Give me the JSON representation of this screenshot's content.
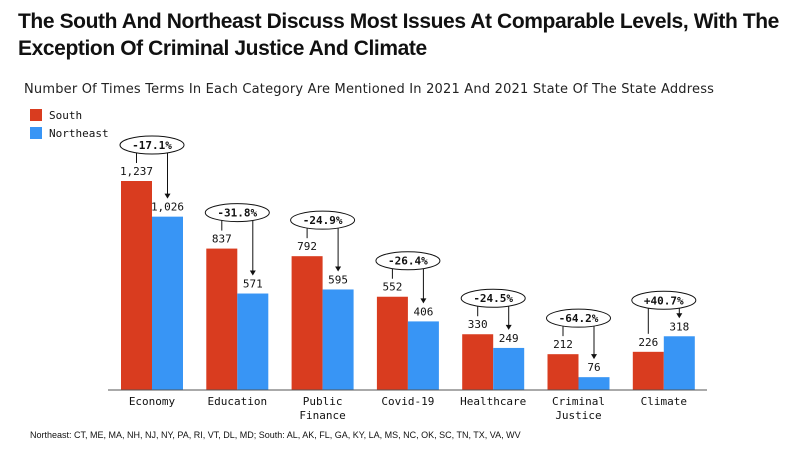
{
  "chart_data": {
    "type": "bar",
    "title": "The South And Northeast Discuss Most Issues At Comparable Levels, With The Exception Of Criminal Justice And Climate",
    "subtitle": "Number Of Times Terms In Each Category Are Mentioned In 2021 And 2021 State Of The State Address",
    "categories": [
      [
        "Economy"
      ],
      [
        "Education"
      ],
      [
        "Public",
        "Finance"
      ],
      [
        "Covid-19"
      ],
      [
        "Healthcare"
      ],
      [
        "Criminal",
        "Justice"
      ],
      [
        "Climate"
      ]
    ],
    "series": [
      {
        "name": "South",
        "color": "#d93c1f",
        "values": [
          1237,
          837,
          792,
          552,
          330,
          212,
          226
        ],
        "labels": [
          "1,237",
          "837",
          "792",
          "552",
          "330",
          "212",
          "226"
        ]
      },
      {
        "name": "Northeast",
        "color": "#3895f5",
        "values": [
          1026,
          571,
          595,
          406,
          249,
          76,
          318
        ],
        "labels": [
          "1,026",
          "571",
          "595",
          "406",
          "249",
          "76",
          "318"
        ]
      }
    ],
    "pct_change": [
      "-17.1%",
      "-31.8%",
      "-24.9%",
      "-26.4%",
      "-24.5%",
      "-64.2%",
      "+40.7%"
    ],
    "ylim": [
      0,
      1237
    ],
    "grid": false,
    "legend_position": "top-left"
  },
  "footnote": "Northeast: CT, ME, MA, NH, NJ, NY, PA, RI, VT, DL, MD; South: AL, AK, FL, GA, KY, LA, MS, NC, OK, SC, TN, TX, VA, WV"
}
